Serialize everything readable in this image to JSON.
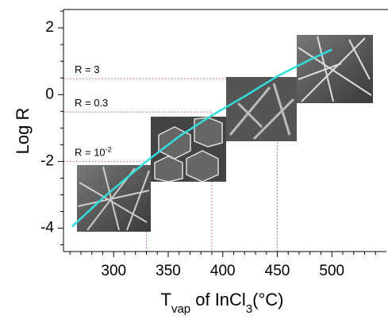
{
  "chart_data": {
    "type": "line",
    "y_label": "Log R",
    "x_label": [
      {
        "text": "T"
      },
      {
        "text": "vap",
        "sub": true
      },
      {
        "text": " of InCl"
      },
      {
        "text": "3",
        "sub": true
      },
      {
        "text": "(°C)"
      }
    ],
    "xlim": [
      254,
      550
    ],
    "ylim": [
      -4.7,
      2.55
    ],
    "xticks": [
      300,
      350,
      400,
      450,
      500
    ],
    "yticks": [
      -4,
      -2,
      0,
      2
    ],
    "xticks_minor": [
      260,
      270,
      280,
      290,
      310,
      320,
      330,
      340,
      360,
      370,
      380,
      390,
      410,
      420,
      430,
      440,
      460,
      470,
      480,
      490,
      510,
      520,
      530,
      540
    ],
    "yticks_minor": [
      -4.5,
      -3.5,
      -3,
      -2.5,
      -1.5,
      -1,
      -0.5,
      0.5,
      1,
      1.5,
      2.5
    ],
    "series": [
      {
        "color": "#33dede",
        "x": [
          262,
          290,
          330,
          360,
          390,
          420,
          450,
          480,
          500
        ],
        "y": [
          -3.95,
          -3.1,
          -2.0,
          -1.25,
          -0.62,
          -0.05,
          0.55,
          1.05,
          1.35
        ]
      }
    ],
    "threshold_color": "#d0409a",
    "thresholds": [
      {
        "label": [
          {
            "text": "R = 3"
          }
        ],
        "logR": 0.477,
        "T": 450
      },
      {
        "label": [
          {
            "text": "R = 0.3"
          }
        ],
        "logR": -0.52,
        "T": 390
      },
      {
        "label": [
          {
            "text": "R = 10"
          },
          {
            "text": "-2",
            "sup": true
          }
        ],
        "logR": -2,
        "T": 330
      }
    ]
  }
}
